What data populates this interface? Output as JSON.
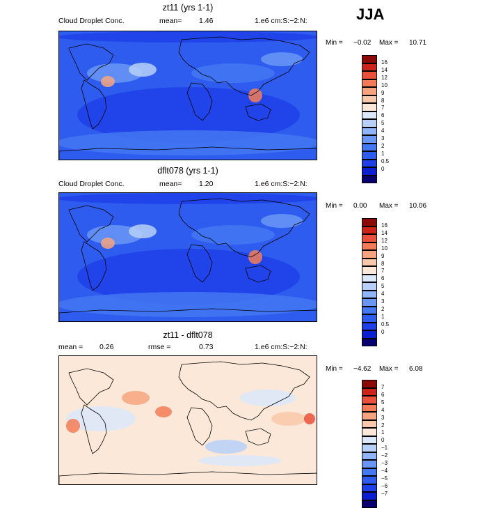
{
  "season": "JJA",
  "colors": {
    "positive_scale": [
      "#08006e",
      "#0a1fd0",
      "#1f3fe8",
      "#2d5cef",
      "#4477f2",
      "#6a97f5",
      "#8fb4f7",
      "#b7d0f9",
      "#dbe7fb",
      "#fbe8d8",
      "#f9c8aa",
      "#f6a47f",
      "#f37c57",
      "#e9513a",
      "#cc2418",
      "#8b0a07"
    ],
    "diff_scale": [
      "#08006e",
      "#0a1fd0",
      "#1f3fe8",
      "#2d5cef",
      "#4477f2",
      "#6a97f5",
      "#8fb4f7",
      "#b7d0f9",
      "#dbe7fb",
      "#fbe8d8",
      "#f9c8aa",
      "#f6a47f",
      "#f37c57",
      "#e9513a",
      "#cc2418",
      "#8b0a07"
    ]
  },
  "chart_data": [
    {
      "type": "heatmap",
      "title": "zt11 (yrs 1-1)",
      "variable": "Cloud Droplet Conc.",
      "mean_label": "mean=",
      "mean": "1.46",
      "units": "1.e6 cm:S:−2:N:",
      "min_label": "Min =",
      "min": "−0.02",
      "max_label": "Max =",
      "max": "10.71",
      "colorbar_levels": [
        "16",
        "14",
        "12",
        "10",
        "9",
        "8",
        "7",
        "6",
        "5",
        "4",
        "3",
        "2",
        "1",
        "0.5",
        "0"
      ]
    },
    {
      "type": "heatmap",
      "title": "dflt078 (yrs 1-1)",
      "variable": "Cloud Droplet Conc.",
      "mean_label": "mean=",
      "mean": "1.20",
      "units": "1.e6 cm:S:−2:N:",
      "min_label": "Min =",
      "min": "0.00",
      "max_label": "Max =",
      "max": "10.06",
      "colorbar_levels": [
        "16",
        "14",
        "12",
        "10",
        "9",
        "8",
        "7",
        "6",
        "5",
        "4",
        "3",
        "2",
        "1",
        "0.5",
        "0"
      ]
    },
    {
      "type": "heatmap",
      "title": "zt11 - dflt078",
      "mean_label": "mean =",
      "mean": "0.26",
      "rmse_label": "rmse =",
      "rmse": "0.73",
      "units": "1.e6 cm:S:−2:N:",
      "min_label": "Min =",
      "min": "−4.62",
      "max_label": "Max =",
      "max": "6.08",
      "colorbar_levels": [
        "7",
        "6",
        "5",
        "4",
        "3",
        "2",
        "1",
        "0",
        "−1",
        "−2",
        "−3",
        "−4",
        "−5",
        "−6",
        "−7"
      ]
    }
  ]
}
